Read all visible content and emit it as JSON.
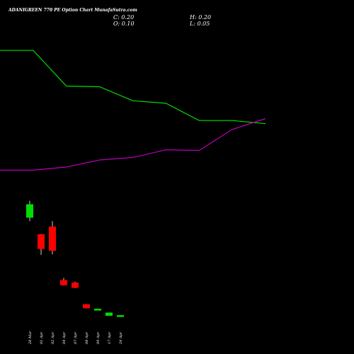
{
  "header": {
    "title": "ADANIGREEN  770  PE Option  Chart MunafaSutra.com",
    "c_label": "C: 0.20",
    "h_label": "H: 0.20",
    "o_label": "O: 0.10",
    "l_label": "L: 0.05"
  },
  "chart_data": {
    "type": "candlestick",
    "title": "ADANIGREEN  770  PE Option  Chart MunafaSutra.com",
    "categories": [
      "28 Mar",
      "01 Apr",
      "02 Apr",
      "04 Apr",
      "07 Apr",
      "08 Apr",
      "09 Apr",
      "17 Apr",
      "24 Apr"
    ],
    "candles": [
      {
        "date": "28 Mar",
        "open": 19.0,
        "high": 19.6,
        "low": 16.4,
        "close": 17.0,
        "color": "green"
      },
      {
        "date": "01 Apr",
        "open": 14.3,
        "high": 14.4,
        "low": 11.1,
        "close": 12.1,
        "color": "red"
      },
      {
        "date": "02 Apr",
        "open": 15.5,
        "high": 16.4,
        "low": 11.2,
        "close": 11.8,
        "color": "red"
      },
      {
        "date": "04 Apr",
        "open": 7.1,
        "high": 7.5,
        "low": 6.3,
        "close": 6.4,
        "color": "red"
      },
      {
        "date": "07 Apr",
        "open": 6.7,
        "high": 6.9,
        "low": 5.9,
        "close": 6.0,
        "color": "red"
      },
      {
        "date": "08 Apr",
        "open": 3.3,
        "high": 3.4,
        "low": 2.7,
        "close": 2.8,
        "color": "red"
      },
      {
        "date": "09 Apr",
        "open": 2.6,
        "high": 2.7,
        "low": 2.5,
        "close": 2.6,
        "color": "green"
      },
      {
        "date": "17 Apr",
        "open": 1.6,
        "high": 2.0,
        "low": 1.6,
        "close": 2.0,
        "color": "green"
      },
      {
        "date": "24 Apr",
        "open": 1.5,
        "high": 1.6,
        "low": 1.4,
        "close": 1.6,
        "color": "green"
      }
    ],
    "series": [
      {
        "color": "#00dd00",
        "values": [
          43.2,
          43.2,
          37.6,
          37.5,
          35.3,
          34.9,
          32.2,
          32.2,
          31.7
        ]
      },
      {
        "color": "#bb00bb",
        "values": [
          24.4,
          24.4,
          24.9,
          26.0,
          26.4,
          27.6,
          27.5,
          30.8,
          32.5
        ]
      }
    ],
    "colors": {
      "up": "#00dd00",
      "down": "#ff0000",
      "background": "#000000"
    }
  }
}
